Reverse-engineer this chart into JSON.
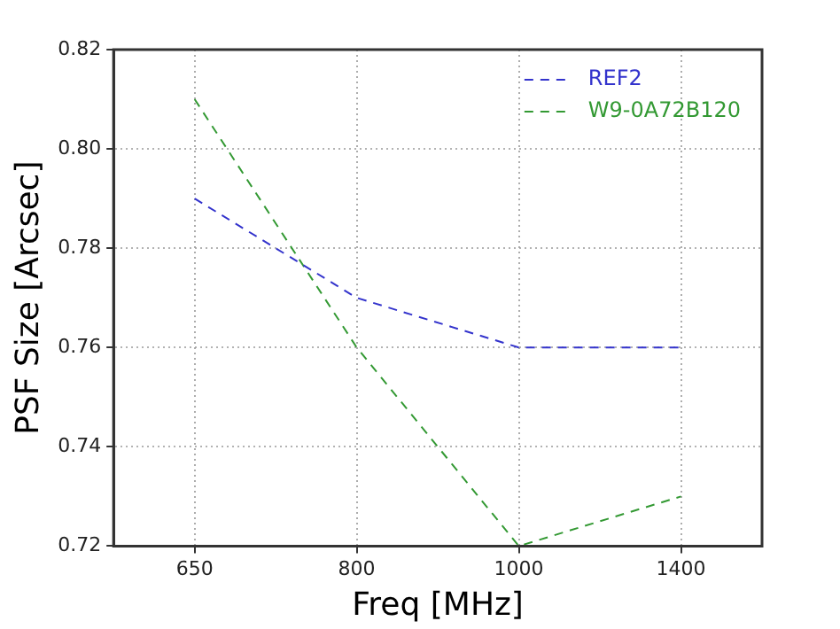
{
  "chart_data": {
    "type": "line",
    "xlabel": "Freq [MHz]",
    "ylabel": "PSF Size [Arcsec]",
    "categories": [
      "650",
      "800",
      "1000",
      "1400"
    ],
    "series": [
      {
        "name": "REF2",
        "color": "#3333cc",
        "values": [
          0.79,
          0.77,
          0.76,
          0.76
        ]
      },
      {
        "name": "W9-0A72B120",
        "color": "#339933",
        "values": [
          0.81,
          0.76,
          0.72,
          0.73
        ]
      }
    ],
    "ylim": [
      0.72,
      0.82
    ],
    "yticks": [
      {
        "value": 0.72,
        "label": "0.72"
      },
      {
        "value": 0.74,
        "label": "0.74"
      },
      {
        "value": 0.76,
        "label": "0.76"
      },
      {
        "value": 0.78,
        "label": "0.78"
      },
      {
        "value": 0.8,
        "label": "0.80"
      },
      {
        "value": 0.82,
        "label": "0.82"
      }
    ],
    "grid": true,
    "legend": "top right",
    "marker": "none",
    "line_style": "dashed"
  }
}
